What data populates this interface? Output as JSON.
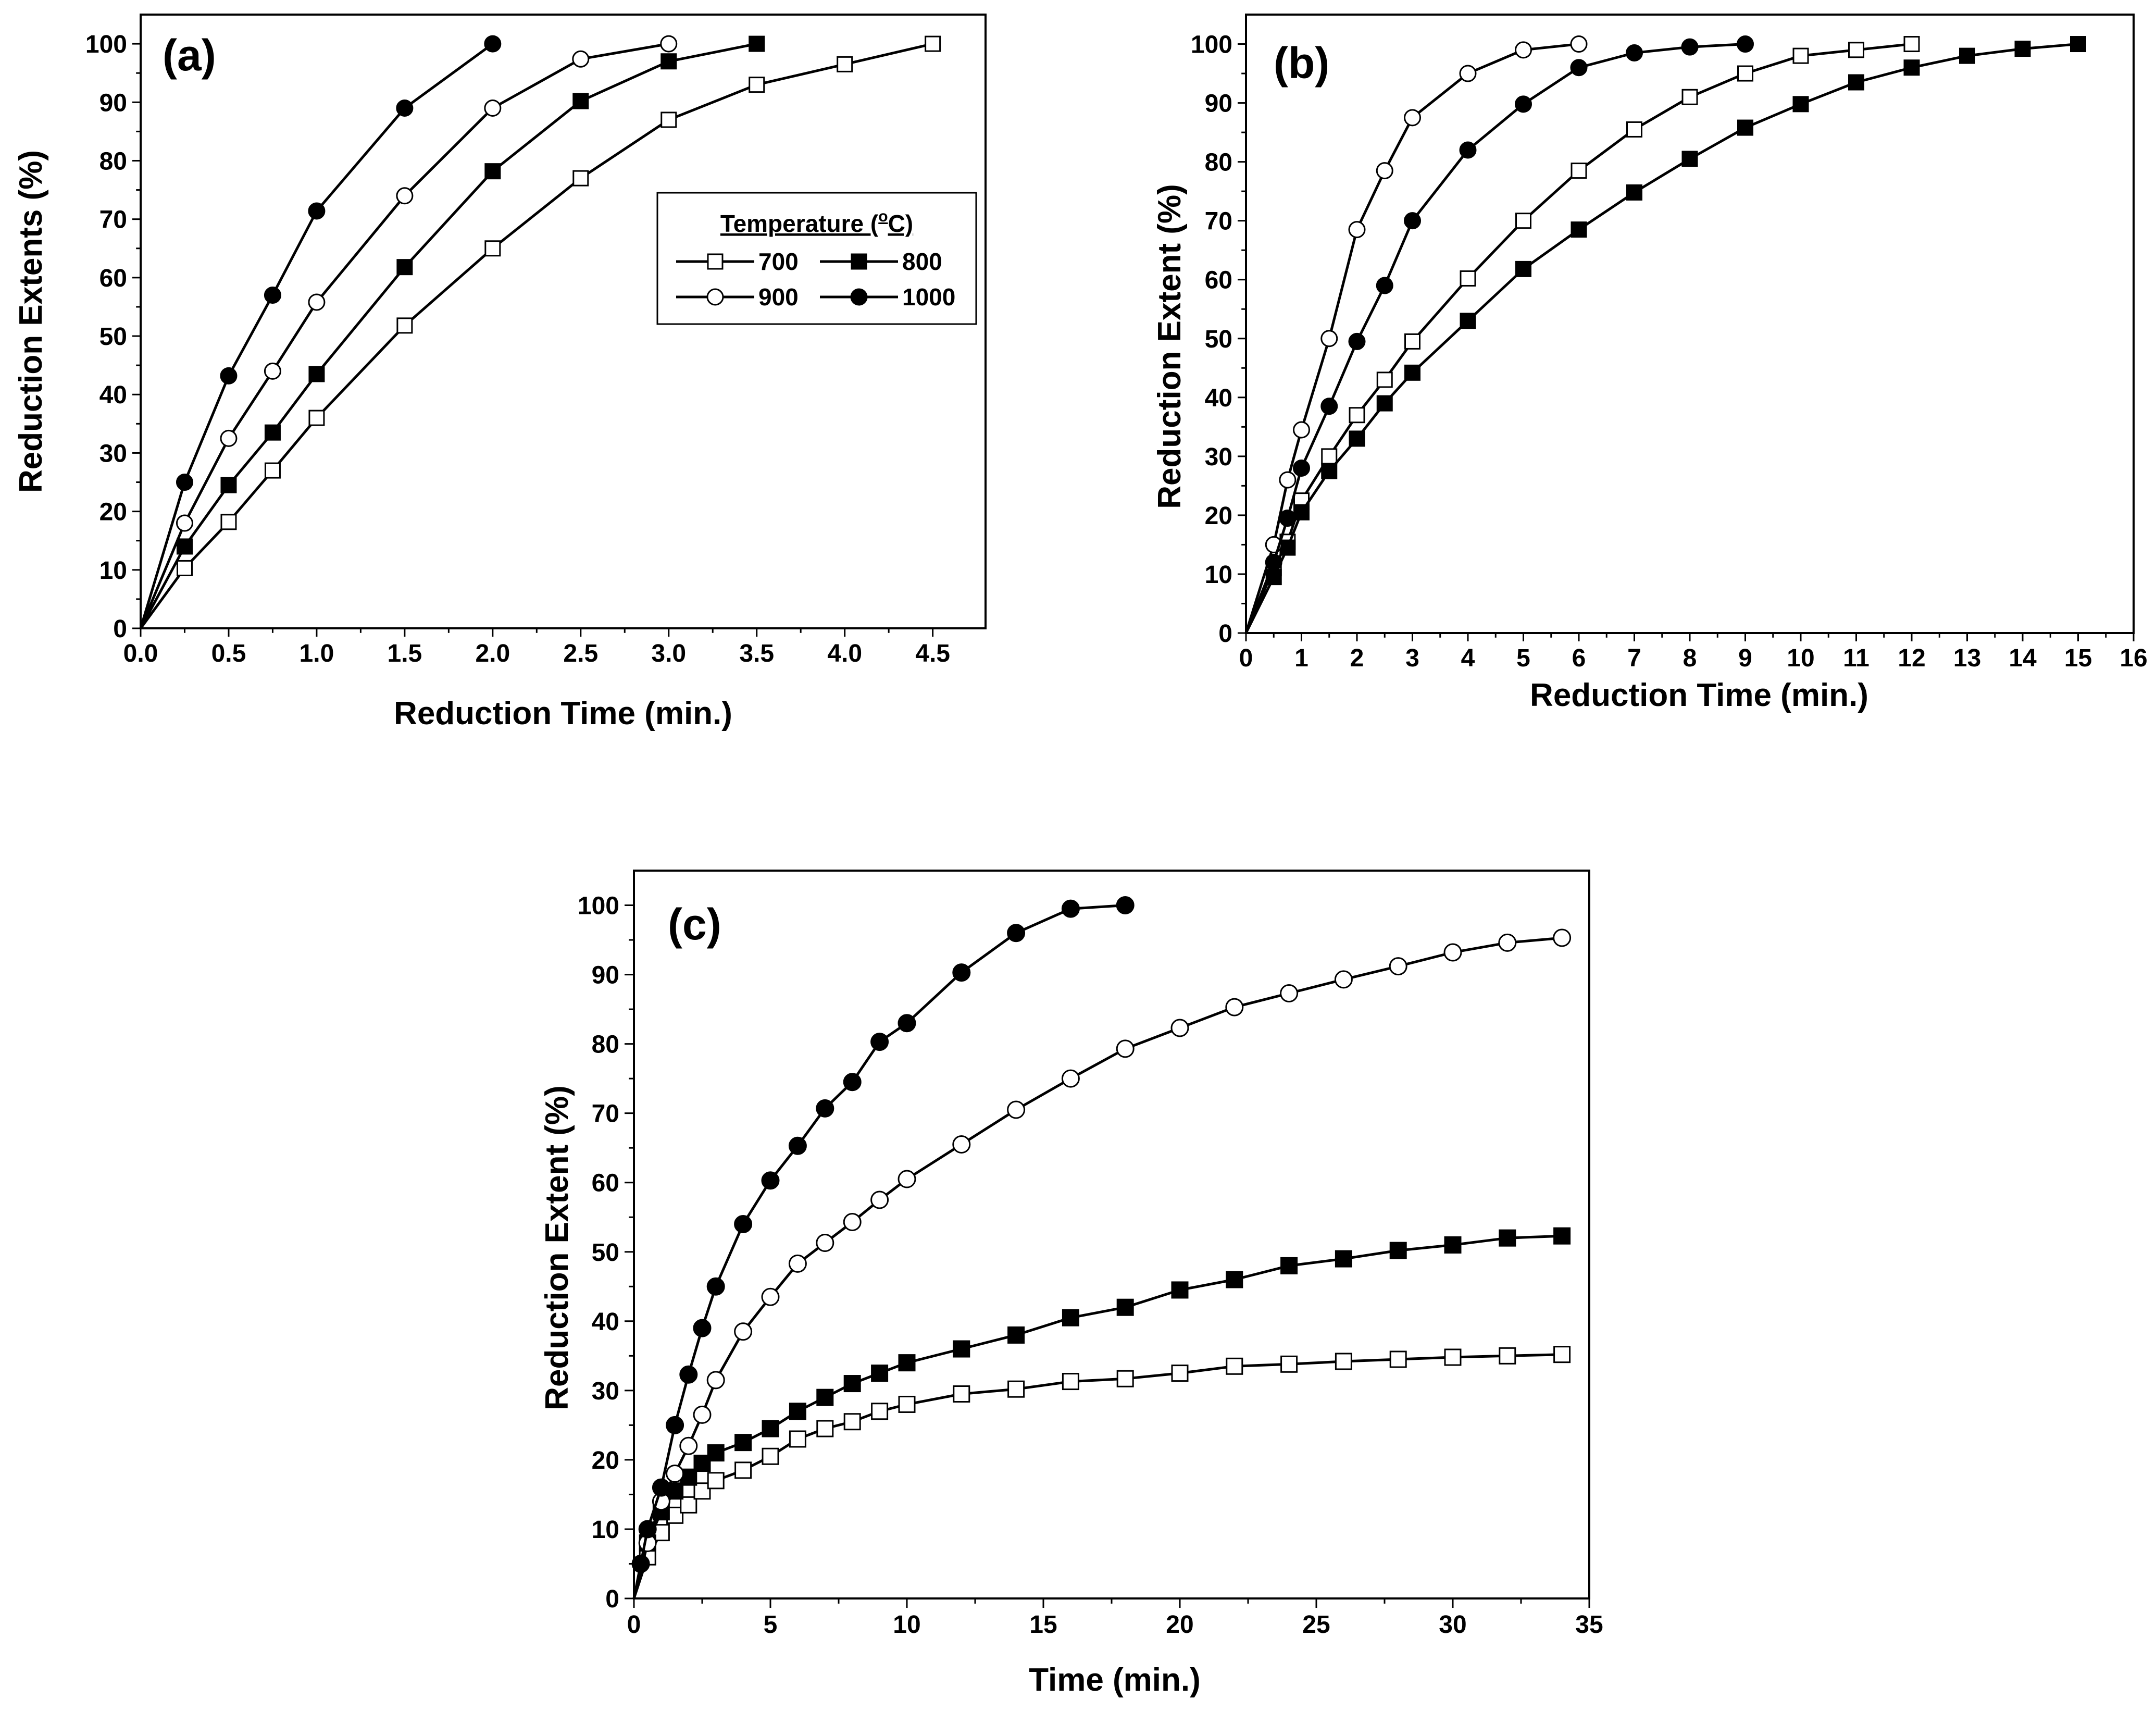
{
  "legend": {
    "title_prefix": "Temperature (",
    "title_sup": "o",
    "title_suffix": "C)",
    "entries": [
      "700",
      "800",
      "900",
      "1000"
    ]
  },
  "chart_data": [
    {
      "id": "a",
      "type": "line",
      "panel_label": "(a)",
      "xlabel": "Reduction Time (min.)",
      "ylabel": "Reduction Extents (%)",
      "xlim": [
        0,
        4.8
      ],
      "ylim": [
        0,
        105
      ],
      "xticks": [
        0,
        0.5,
        1,
        1.5,
        2,
        2.5,
        3,
        3.5,
        4,
        4.5
      ],
      "xtick_labels": [
        "0.0",
        "0.5",
        "1.0",
        "1.5",
        "2.0",
        "2.5",
        "3.0",
        "3.5",
        "4.0",
        "4.5"
      ],
      "yticks": [
        0,
        10,
        20,
        30,
        40,
        50,
        60,
        70,
        80,
        90,
        100
      ],
      "ytick_labels": [
        "0",
        "10",
        "20",
        "30",
        "40",
        "50",
        "60",
        "70",
        "80",
        "90",
        "100"
      ],
      "legend_position": "center-right",
      "series": [
        {
          "name": "700",
          "marker": "open-square",
          "x": [
            0,
            0.25,
            0.5,
            0.75,
            1,
            1.5,
            2,
            2.5,
            3,
            3.5,
            4,
            4.5
          ],
          "y": [
            0,
            10.3,
            18.2,
            27,
            36,
            51.8,
            65,
            77,
            87,
            93,
            96.5,
            100
          ]
        },
        {
          "name": "800",
          "marker": "filled-square",
          "x": [
            0,
            0.25,
            0.5,
            0.75,
            1,
            1.5,
            2,
            2.5,
            3,
            3.5
          ],
          "y": [
            0,
            14,
            24.5,
            33.5,
            43.5,
            61.8,
            78.2,
            90.2,
            97,
            100
          ]
        },
        {
          "name": "900",
          "marker": "open-circle",
          "x": [
            0,
            0.25,
            0.5,
            0.75,
            1,
            1.5,
            2,
            2.5,
            3
          ],
          "y": [
            0,
            18,
            32.5,
            44,
            55.8,
            74,
            89,
            97.4,
            100
          ]
        },
        {
          "name": "1000",
          "marker": "filled-circle",
          "x": [
            0,
            0.25,
            0.5,
            0.75,
            1,
            1.5,
            2
          ],
          "y": [
            0,
            25,
            43.2,
            57,
            71.4,
            89,
            100
          ]
        }
      ]
    },
    {
      "id": "b",
      "type": "line",
      "panel_label": "(b)",
      "xlabel": "Reduction Time (min.)",
      "ylabel": "Reduction Extent (%)",
      "xlim": [
        0,
        16
      ],
      "ylim": [
        0,
        105
      ],
      "xticks": [
        0,
        1,
        2,
        3,
        4,
        5,
        6,
        7,
        8,
        9,
        10,
        11,
        12,
        13,
        14,
        15,
        16
      ],
      "xtick_labels": [
        "0",
        "1",
        "2",
        "3",
        "4",
        "5",
        "6",
        "7",
        "8",
        "9",
        "10",
        "11",
        "12",
        "13",
        "14",
        "15",
        "16"
      ],
      "yticks": [
        0,
        10,
        20,
        30,
        40,
        50,
        60,
        70,
        80,
        90,
        100
      ],
      "ytick_labels": [
        "0",
        "10",
        "20",
        "30",
        "40",
        "50",
        "60",
        "70",
        "80",
        "90",
        "100"
      ],
      "series": [
        {
          "name": "700",
          "marker": "open-square",
          "x": [
            0,
            0.5,
            0.75,
            1,
            1.5,
            2,
            2.5,
            3,
            4,
            5,
            6,
            7,
            8,
            9,
            10,
            11,
            12
          ],
          "y": [
            0,
            11,
            15.5,
            22.5,
            30,
            37,
            43,
            49.5,
            60.2,
            70,
            78.5,
            85.5,
            91,
            95,
            98,
            99,
            100
          ]
        },
        {
          "name": "800",
          "marker": "filled-square",
          "x": [
            0,
            0.5,
            0.75,
            1,
            1.5,
            2,
            2.5,
            3,
            4,
            5,
            6,
            7,
            8,
            9,
            10,
            11,
            12,
            13,
            14,
            15
          ],
          "y": [
            0,
            9.5,
            14.5,
            20.5,
            27.5,
            33,
            39,
            44.2,
            53,
            61.8,
            68.5,
            74.8,
            80.5,
            85.8,
            89.8,
            93.5,
            96,
            98,
            99.2,
            100
          ]
        },
        {
          "name": "900",
          "marker": "open-circle",
          "x": [
            0,
            0.5,
            0.75,
            1,
            1.5,
            2,
            2.5,
            3,
            4,
            5,
            6
          ],
          "y": [
            0,
            15,
            26,
            34.5,
            50,
            68.5,
            78.5,
            87.5,
            95,
            99,
            100
          ]
        },
        {
          "name": "1000",
          "marker": "filled-circle",
          "x": [
            0,
            0.5,
            0.75,
            1,
            1.5,
            2,
            2.5,
            3,
            4,
            5,
            6,
            7,
            8,
            9
          ],
          "y": [
            0,
            12,
            19.5,
            28,
            38.5,
            49.5,
            59,
            70,
            82,
            89.8,
            96,
            98.5,
            99.5,
            100
          ]
        }
      ]
    },
    {
      "id": "c",
      "type": "line",
      "panel_label": "(c)",
      "xlabel": "Time (min.)",
      "ylabel": "Reduction Extent (%)",
      "xlim": [
        0,
        35
      ],
      "ylim": [
        0,
        105
      ],
      "xticks": [
        0,
        5,
        10,
        15,
        20,
        25,
        30,
        35
      ],
      "xtick_labels": [
        "0",
        "5",
        "10",
        "15",
        "20",
        "25",
        "30",
        "35"
      ],
      "yticks": [
        0,
        10,
        20,
        30,
        40,
        50,
        60,
        70,
        80,
        90,
        100
      ],
      "ytick_labels": [
        "0",
        "10",
        "20",
        "30",
        "40",
        "50",
        "60",
        "70",
        "80",
        "90",
        "100"
      ],
      "series": [
        {
          "name": "700",
          "marker": "open-square",
          "x": [
            0,
            0.5,
            1,
            1.5,
            2,
            2.5,
            3,
            4,
            5,
            6,
            7,
            8,
            9,
            10,
            12,
            14,
            16,
            18,
            20,
            22,
            24,
            26,
            28,
            30,
            32,
            34
          ],
          "y": [
            0,
            6,
            9.5,
            12,
            13.5,
            15.5,
            17,
            18.5,
            20.5,
            23,
            24.5,
            25.5,
            27,
            28,
            29.5,
            30.2,
            31.3,
            31.7,
            32.5,
            33.5,
            33.8,
            34.2,
            34.5,
            34.8,
            35,
            35.2
          ]
        },
        {
          "name": "800",
          "marker": "filled-square",
          "x": [
            0,
            0.5,
            1,
            1.5,
            2,
            2.5,
            3,
            4,
            5,
            6,
            7,
            8,
            9,
            10,
            12,
            14,
            16,
            18,
            20,
            22,
            24,
            26,
            28,
            30,
            32,
            34
          ],
          "y": [
            0,
            8,
            12.5,
            15.5,
            17.5,
            19.5,
            21,
            22.5,
            24.5,
            27,
            29,
            31,
            32.5,
            34,
            36,
            38,
            40.5,
            42,
            44.5,
            46,
            48,
            49,
            50.2,
            51,
            52,
            52.3
          ]
        },
        {
          "name": "900",
          "marker": "open-circle",
          "x": [
            0,
            0.5,
            1,
            1.5,
            2,
            2.5,
            3,
            4,
            5,
            6,
            7,
            8,
            9,
            10,
            12,
            14,
            16,
            18,
            20,
            22,
            24,
            26,
            28,
            30,
            32,
            34
          ],
          "y": [
            0,
            8,
            14,
            18,
            22,
            26.5,
            31.5,
            38.5,
            43.5,
            48.3,
            51.3,
            54.3,
            57.5,
            60.5,
            65.5,
            70.5,
            75,
            79.3,
            82.3,
            85.3,
            87.3,
            89.3,
            91.2,
            93.2,
            94.6,
            95.3
          ]
        },
        {
          "name": "1000",
          "marker": "filled-circle",
          "x": [
            0,
            0.25,
            0.5,
            1,
            1.5,
            2,
            2.5,
            3,
            4,
            5,
            6,
            7,
            8,
            9,
            10,
            12,
            14,
            16,
            18
          ],
          "y": [
            0,
            5,
            10,
            16,
            25,
            32.3,
            39,
            45,
            54,
            60.3,
            65.3,
            70.7,
            74.5,
            80.3,
            83,
            90.3,
            96,
            99.5,
            100
          ]
        }
      ]
    }
  ]
}
